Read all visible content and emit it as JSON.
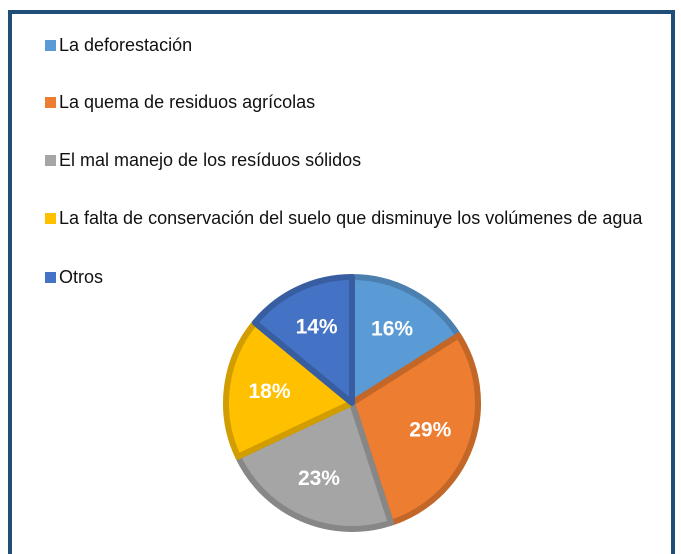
{
  "chart_data": {
    "type": "pie",
    "categories": [
      "La deforestación",
      "La quema de residuos agrícolas",
      "El mal manejo de los resíduos sólidos",
      "La falta de conservación del suelo que disminuye los volúmenes de agua",
      "Otros"
    ],
    "values": [
      16,
      29,
      23,
      18,
      14
    ],
    "value_labels": [
      "16%",
      "29%",
      "23%",
      "18%",
      "14%"
    ],
    "colors": [
      "#5b9bd5",
      "#ed7d31",
      "#a5a5a5",
      "#ffc000",
      "#4472c4"
    ],
    "legend": "top-left"
  }
}
